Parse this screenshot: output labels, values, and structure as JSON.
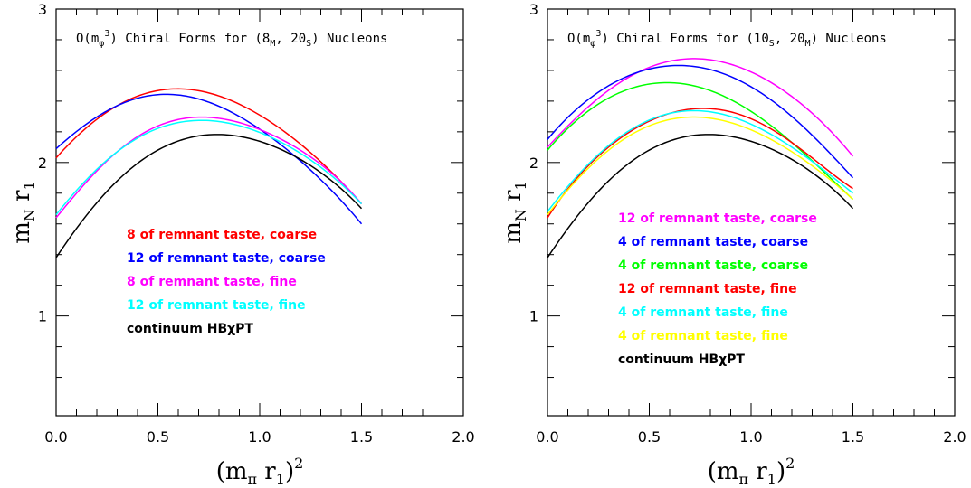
{
  "chart_data": [
    {
      "type": "line",
      "title": "O(m_φ^3) Chiral Forms for (8_M, 20_S) Nucleons",
      "title_parts": {
        "prefix": "O(m",
        "sub_phi": "φ",
        "sup_3": "3",
        "mid": ") Chiral Forms for (8",
        "sub_1": "M",
        "sep": ", 20",
        "sub_2": "S",
        "suffix": ") Nucleons"
      },
      "xlabel": "(m_π r_1)^2",
      "ylabel": "m_N r_1",
      "xlim": [
        0.0,
        2.0
      ],
      "ylim": [
        0.35,
        3.0
      ],
      "xticks": [
        "0.0",
        "0.5",
        "1.0",
        "1.5",
        "2.0"
      ],
      "yticks": [
        "1",
        "2",
        "3"
      ],
      "grid": false,
      "legend_placement": "center-left",
      "series": [
        {
          "name": "8 of remnant taste, coarse",
          "color": "#ff0000",
          "x": [
            0.0,
            0.3,
            0.6,
            0.9,
            1.2,
            1.5
          ],
          "y": [
            2.03,
            2.37,
            2.48,
            2.38,
            2.12,
            1.73
          ]
        },
        {
          "name": "12 of remnant taste, coarse",
          "color": "#0000ff",
          "x": [
            0.0,
            0.3,
            0.6,
            0.9,
            1.2,
            1.5
          ],
          "y": [
            2.09,
            2.37,
            2.44,
            2.3,
            2.01,
            1.6
          ]
        },
        {
          "name": "8 of remnant taste, fine",
          "color": "#ff00ff",
          "x": [
            0.0,
            0.3,
            0.6,
            0.9,
            1.2,
            1.5
          ],
          "y": [
            1.64,
            2.07,
            2.28,
            2.26,
            2.08,
            1.73
          ]
        },
        {
          "name": "12 of remnant taste, fine",
          "color": "#00ffff",
          "x": [
            0.0,
            0.3,
            0.6,
            0.9,
            1.2,
            1.5
          ],
          "y": [
            1.66,
            2.07,
            2.26,
            2.24,
            2.06,
            1.73
          ]
        },
        {
          "name": "continuum HBχPT",
          "color": "#000000",
          "x": [
            0.0,
            0.3,
            0.6,
            0.9,
            1.2,
            1.5
          ],
          "y": [
            1.38,
            1.88,
            2.14,
            2.17,
            2.02,
            1.7
          ]
        }
      ]
    },
    {
      "type": "line",
      "title": "O(m_φ^3) Chiral Forms for (10_S, 20_M) Nucleons",
      "title_parts": {
        "prefix": "O(m",
        "sub_phi": "φ",
        "sup_3": "3",
        "mid": ") Chiral Forms for (10",
        "sub_1": "S",
        "sep": ", 20",
        "sub_2": "M",
        "suffix": ") Nucleons"
      },
      "xlabel": "(m_π r_1)^2",
      "ylabel": "m_N r_1",
      "xlim": [
        0.0,
        2.0
      ],
      "ylim": [
        0.35,
        3.0
      ],
      "xticks": [
        "0.0",
        "0.5",
        "1.0",
        "1.5",
        "2.0"
      ],
      "yticks": [
        "1",
        "2",
        "3"
      ],
      "grid": false,
      "legend_placement": "center-left",
      "series": [
        {
          "name": "12 of remnant taste, coarse",
          "color": "#ff00ff",
          "x": [
            0.0,
            0.3,
            0.6,
            0.9,
            1.2,
            1.5
          ],
          "y": [
            2.1,
            2.47,
            2.66,
            2.64,
            2.43,
            2.04
          ]
        },
        {
          "name": "4 of remnant taste, coarse",
          "color": "#0000ff",
          "x": [
            0.0,
            0.3,
            0.6,
            0.9,
            1.2,
            1.5
          ],
          "y": [
            2.15,
            2.5,
            2.63,
            2.56,
            2.3,
            1.9
          ]
        },
        {
          "name": "4 of remnant taste, coarse",
          "color": "#00ff00",
          "x": [
            0.0,
            0.3,
            0.6,
            0.9,
            1.2,
            1.5
          ],
          "y": [
            2.08,
            2.42,
            2.52,
            2.41,
            2.13,
            1.76
          ]
        },
        {
          "name": "12 of remnant taste, fine",
          "color": "#ff0000",
          "x": [
            0.0,
            0.3,
            0.6,
            0.9,
            1.2,
            1.5
          ],
          "y": [
            1.64,
            2.1,
            2.32,
            2.33,
            2.13,
            1.83
          ]
        },
        {
          "name": "4 of remnant taste, fine",
          "color": "#00ffff",
          "x": [
            0.0,
            0.3,
            0.6,
            0.9,
            1.2,
            1.5
          ],
          "y": [
            1.68,
            2.11,
            2.32,
            2.3,
            2.1,
            1.8
          ]
        },
        {
          "name": "4 of remnant taste, fine",
          "color": "#ffff00",
          "x": [
            0.0,
            0.3,
            0.6,
            0.9,
            1.2,
            1.5
          ],
          "y": [
            1.66,
            2.08,
            2.28,
            2.26,
            2.07,
            1.76
          ]
        },
        {
          "name": "continuum HBχPT",
          "color": "#000000",
          "x": [
            0.0,
            0.3,
            0.6,
            0.9,
            1.2,
            1.5
          ],
          "y": [
            1.38,
            1.88,
            2.14,
            2.17,
            2.02,
            1.7
          ]
        }
      ]
    }
  ]
}
